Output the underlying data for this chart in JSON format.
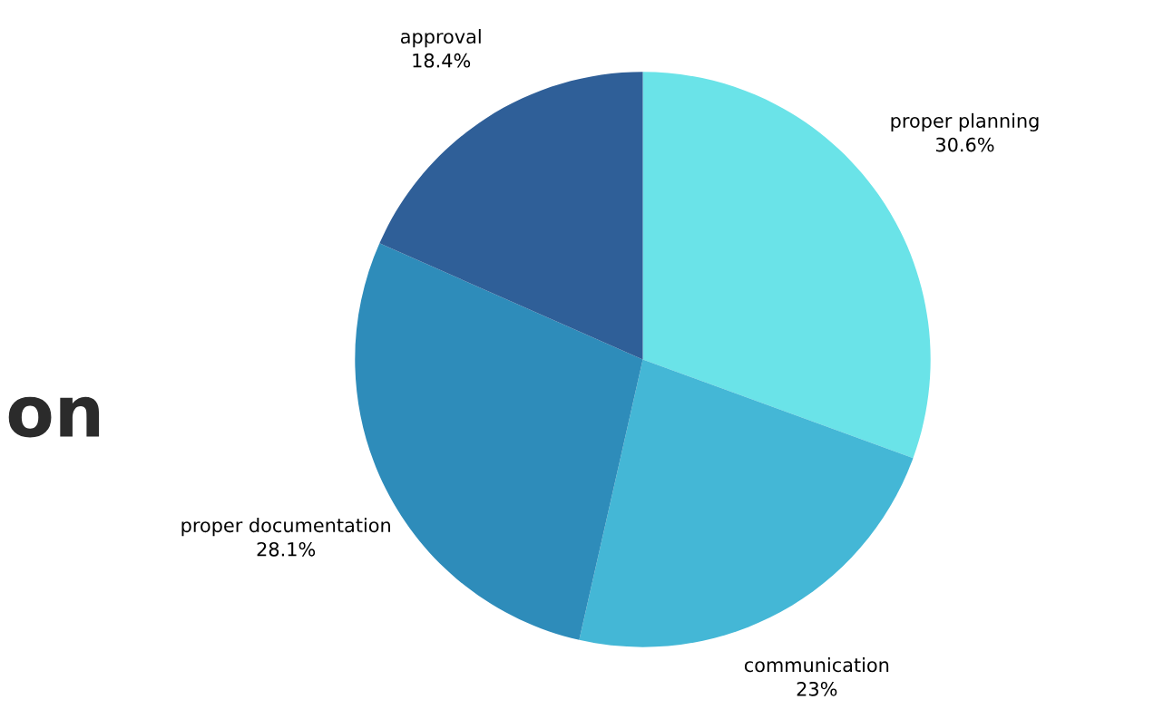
{
  "chart_data": {
    "type": "pie",
    "categories": [
      "proper planning",
      "communication",
      "proper documentation",
      "approval"
    ],
    "values": [
      30.6,
      23,
      28.1,
      18.4
    ],
    "value_labels": [
      "30.6%",
      "23%",
      "28.1%",
      "18.4%"
    ],
    "colors": [
      "#6ae3e8",
      "#44b7d6",
      "#2e8cba",
      "#2f5f98"
    ],
    "annotations": [
      "on"
    ],
    "legend": false
  }
}
